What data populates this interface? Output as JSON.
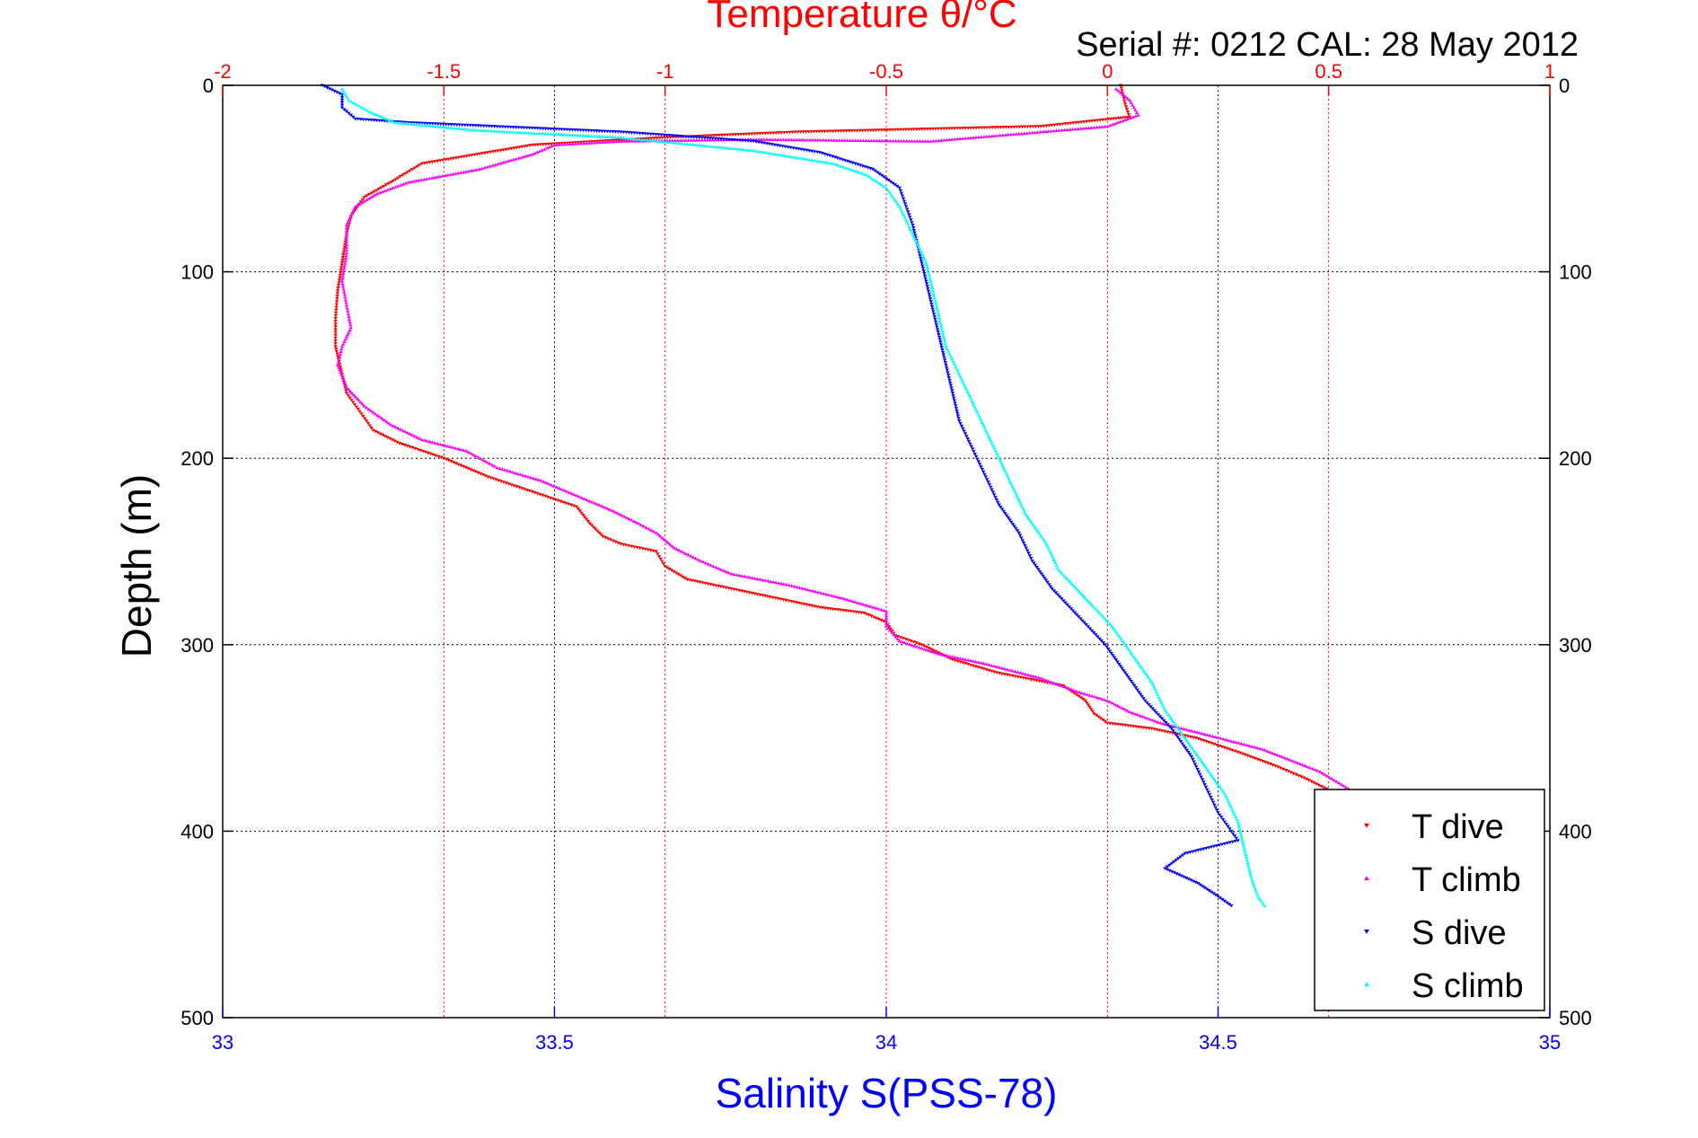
{
  "chart_data": {
    "type": "scatter",
    "title": "Temperature θ/°C",
    "subtitle": "Serial #: 0212  CAL: 28 May 2012",
    "xlabel": "Salinity S(PSS-78)",
    "ylabel": "Depth (m)",
    "x_bottom": {
      "range": [
        33,
        35
      ],
      "ticks": [
        "33",
        "33.5",
        "34",
        "34.5",
        "35"
      ],
      "color": "#0000ff"
    },
    "x_top": {
      "range": [
        -2,
        1
      ],
      "ticks": [
        "-2",
        "-1.5",
        "-1",
        "-0.5",
        "0",
        "0.5",
        "1"
      ],
      "color": "#ff0000"
    },
    "y": {
      "range": [
        0,
        500
      ],
      "reversed": true,
      "ticks": [
        "0",
        "100",
        "200",
        "300",
        "400",
        "500"
      ]
    },
    "grid": true,
    "legend": "bottom-right",
    "series": [
      {
        "name": "T dive",
        "axis": "temperature",
        "color": "#ff0000",
        "marker": "triangle-down",
        "points": [
          [
            0.03,
            0
          ],
          [
            0.04,
            10
          ],
          [
            0.05,
            17
          ],
          [
            -0.15,
            22
          ],
          [
            -0.7,
            25
          ],
          [
            -1.0,
            28
          ],
          [
            -1.3,
            32
          ],
          [
            -1.55,
            42
          ],
          [
            -1.62,
            52
          ],
          [
            -1.68,
            60
          ],
          [
            -1.71,
            70
          ],
          [
            -1.72,
            80
          ],
          [
            -1.73,
            95
          ],
          [
            -1.74,
            110
          ],
          [
            -1.745,
            125
          ],
          [
            -1.745,
            140
          ],
          [
            -1.73,
            155
          ],
          [
            -1.72,
            165
          ],
          [
            -1.69,
            175
          ],
          [
            -1.66,
            185
          ],
          [
            -1.6,
            192
          ],
          [
            -1.5,
            200
          ],
          [
            -1.4,
            210
          ],
          [
            -1.3,
            218
          ],
          [
            -1.2,
            226
          ],
          [
            -1.17,
            235
          ],
          [
            -1.14,
            242
          ],
          [
            -1.1,
            246
          ],
          [
            -1.02,
            250
          ],
          [
            -1.0,
            258
          ],
          [
            -0.95,
            265
          ],
          [
            -0.85,
            270
          ],
          [
            -0.75,
            275
          ],
          [
            -0.65,
            280
          ],
          [
            -0.55,
            283
          ],
          [
            -0.5,
            288
          ],
          [
            -0.48,
            295
          ],
          [
            -0.42,
            300
          ],
          [
            -0.35,
            308
          ],
          [
            -0.25,
            315
          ],
          [
            -0.1,
            322
          ],
          [
            -0.05,
            330
          ],
          [
            -0.03,
            337
          ],
          [
            0.0,
            342
          ],
          [
            0.1,
            345
          ],
          [
            0.2,
            350
          ],
          [
            0.3,
            358
          ],
          [
            0.38,
            365
          ],
          [
            0.45,
            372
          ],
          [
            0.5,
            378
          ],
          [
            0.55,
            382
          ]
        ]
      },
      {
        "name": "T climb",
        "axis": "temperature",
        "color": "#ff00ff",
        "marker": "triangle-up",
        "points": [
          [
            0.02,
            2
          ],
          [
            0.05,
            8
          ],
          [
            0.07,
            16
          ],
          [
            0.0,
            22
          ],
          [
            -0.2,
            26
          ],
          [
            -0.4,
            30
          ],
          [
            -0.8,
            29
          ],
          [
            -1.1,
            30
          ],
          [
            -1.25,
            32
          ],
          [
            -1.3,
            37
          ],
          [
            -1.42,
            45
          ],
          [
            -1.58,
            52
          ],
          [
            -1.65,
            58
          ],
          [
            -1.7,
            65
          ],
          [
            -1.72,
            75
          ],
          [
            -1.72,
            90
          ],
          [
            -1.73,
            105
          ],
          [
            -1.72,
            118
          ],
          [
            -1.71,
            130
          ],
          [
            -1.73,
            140
          ],
          [
            -1.74,
            150
          ],
          [
            -1.72,
            162
          ],
          [
            -1.68,
            172
          ],
          [
            -1.62,
            182
          ],
          [
            -1.55,
            190
          ],
          [
            -1.45,
            196
          ],
          [
            -1.38,
            205
          ],
          [
            -1.28,
            212
          ],
          [
            -1.2,
            220
          ],
          [
            -1.12,
            228
          ],
          [
            -1.06,
            235
          ],
          [
            -1.02,
            240
          ],
          [
            -0.98,
            248
          ],
          [
            -0.92,
            255
          ],
          [
            -0.85,
            262
          ],
          [
            -0.72,
            268
          ],
          [
            -0.6,
            275
          ],
          [
            -0.5,
            282
          ],
          [
            -0.5,
            290
          ],
          [
            -0.47,
            298
          ],
          [
            -0.38,
            305
          ],
          [
            -0.28,
            310
          ],
          [
            -0.15,
            318
          ],
          [
            -0.07,
            325
          ],
          [
            0.0,
            330
          ],
          [
            0.05,
            336
          ],
          [
            0.12,
            342
          ],
          [
            0.22,
            348
          ],
          [
            0.35,
            356
          ],
          [
            0.48,
            368
          ],
          [
            0.55,
            378
          ],
          [
            0.58,
            385
          ]
        ]
      },
      {
        "name": "S dive",
        "axis": "salinity",
        "color": "#0000ff",
        "marker": "triangle-down",
        "points": [
          [
            33.15,
            0
          ],
          [
            33.18,
            5
          ],
          [
            33.18,
            12
          ],
          [
            33.2,
            18
          ],
          [
            33.28,
            20
          ],
          [
            33.6,
            25
          ],
          [
            33.8,
            30
          ],
          [
            33.9,
            36
          ],
          [
            33.98,
            45
          ],
          [
            34.02,
            55
          ],
          [
            34.03,
            65
          ],
          [
            34.04,
            75
          ],
          [
            34.05,
            90
          ],
          [
            34.06,
            105
          ],
          [
            34.07,
            120
          ],
          [
            34.08,
            135
          ],
          [
            34.09,
            150
          ],
          [
            34.1,
            165
          ],
          [
            34.11,
            180
          ],
          [
            34.13,
            195
          ],
          [
            34.15,
            210
          ],
          [
            34.17,
            225
          ],
          [
            34.2,
            240
          ],
          [
            34.22,
            255
          ],
          [
            34.25,
            270
          ],
          [
            34.29,
            285
          ],
          [
            34.33,
            300
          ],
          [
            34.36,
            315
          ],
          [
            34.39,
            330
          ],
          [
            34.43,
            345
          ],
          [
            34.46,
            360
          ],
          [
            34.48,
            375
          ],
          [
            34.5,
            390
          ],
          [
            34.52,
            400
          ],
          [
            34.53,
            405
          ],
          [
            34.45,
            412
          ],
          [
            34.42,
            420
          ],
          [
            34.47,
            428
          ],
          [
            34.5,
            435
          ],
          [
            34.52,
            440
          ]
        ]
      },
      {
        "name": "S climb",
        "axis": "salinity",
        "color": "#00ffff",
        "marker": "triangle-up",
        "points": [
          [
            33.18,
            2
          ],
          [
            33.19,
            8
          ],
          [
            33.22,
            14
          ],
          [
            33.26,
            20
          ],
          [
            33.38,
            24
          ],
          [
            33.6,
            28
          ],
          [
            33.8,
            35
          ],
          [
            33.92,
            42
          ],
          [
            33.97,
            48
          ],
          [
            34.0,
            55
          ],
          [
            34.02,
            65
          ],
          [
            34.04,
            80
          ],
          [
            34.06,
            95
          ],
          [
            34.07,
            110
          ],
          [
            34.08,
            125
          ],
          [
            34.09,
            140
          ],
          [
            34.11,
            155
          ],
          [
            34.13,
            170
          ],
          [
            34.15,
            185
          ],
          [
            34.17,
            200
          ],
          [
            34.19,
            215
          ],
          [
            34.21,
            230
          ],
          [
            34.24,
            245
          ],
          [
            34.26,
            260
          ],
          [
            34.3,
            275
          ],
          [
            34.34,
            290
          ],
          [
            34.37,
            305
          ],
          [
            34.4,
            320
          ],
          [
            34.42,
            335
          ],
          [
            34.45,
            350
          ],
          [
            34.48,
            365
          ],
          [
            34.51,
            380
          ],
          [
            34.53,
            395
          ],
          [
            34.54,
            410
          ],
          [
            34.55,
            425
          ],
          [
            34.56,
            435
          ],
          [
            34.57,
            440
          ]
        ]
      }
    ]
  }
}
